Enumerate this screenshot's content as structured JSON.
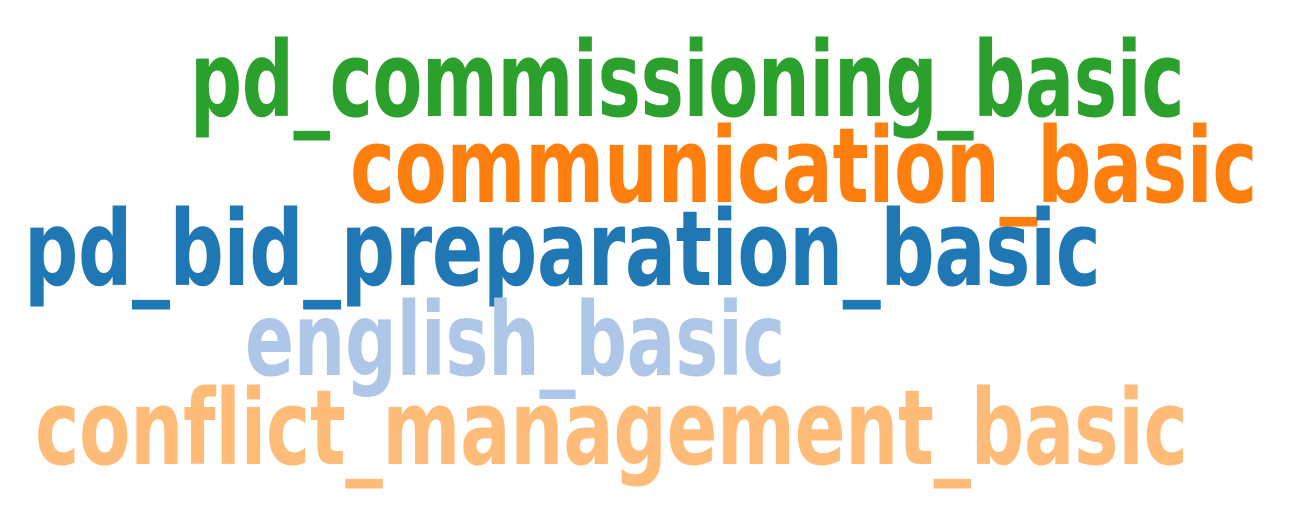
{
  "words": [
    {
      "text": "pd_commissioning_basic",
      "color": "#2ca02c"
    },
    {
      "text": "communication_basic",
      "color": "#ff7f0e"
    },
    {
      "text": "pd_bid_preparation_basic",
      "color": "#1f77b4"
    },
    {
      "text": "english_basic",
      "color": "#aec7e8"
    },
    {
      "text": "conflict_management_basic",
      "color": "#ffbb78"
    }
  ]
}
